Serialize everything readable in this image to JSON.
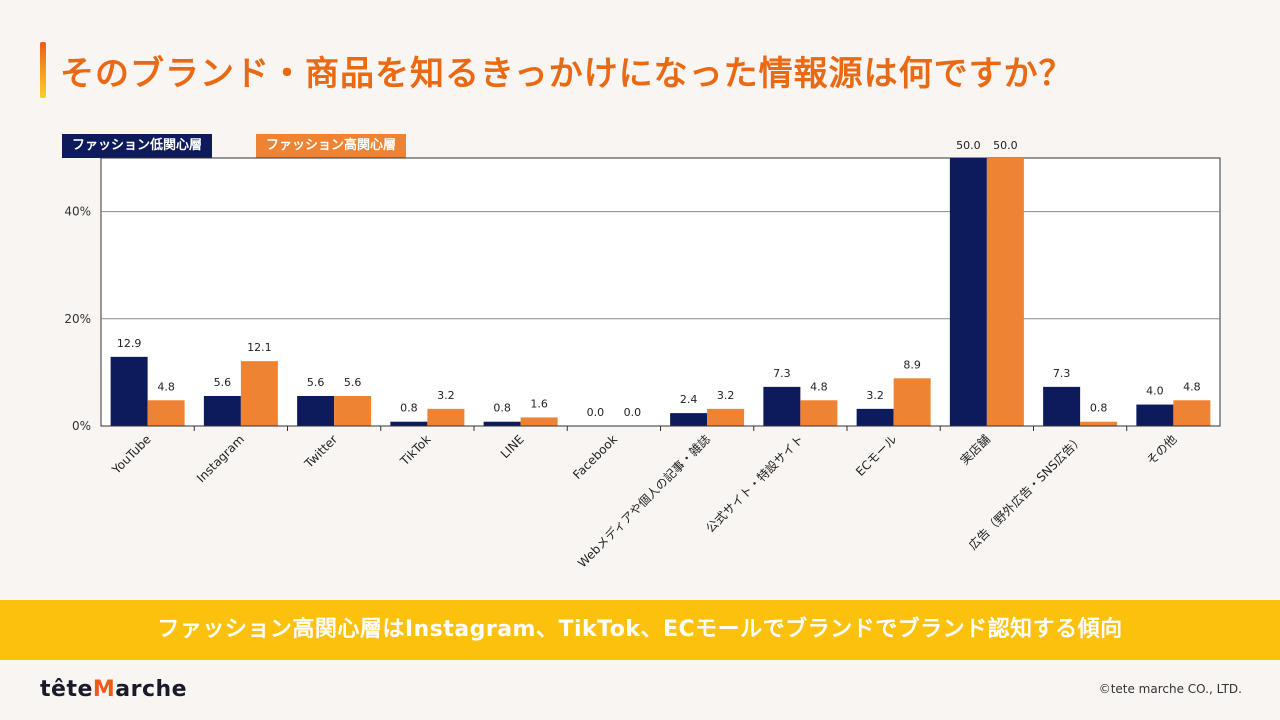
{
  "title": "そのブランド・商品を知るきっかけになった情報源は何ですか？",
  "colors": {
    "accent": "#ea6a14",
    "low": "#0d1a5c",
    "high": "#ee8333",
    "banner": "#fcc10d"
  },
  "chart_data": {
    "type": "bar",
    "categories": [
      "YouTube",
      "Instagram",
      "Twitter",
      "TikTok",
      "LINE",
      "Facebook",
      "Webメディアや個人の記事・雑誌",
      "公式サイト・特設サイト",
      "ECモール",
      "実店舗",
      "広告（野外広告・SNS広告）",
      "その他"
    ],
    "series": [
      {
        "name": "ファッション低関心層",
        "values": [
          12.9,
          5.6,
          5.6,
          0.8,
          0.8,
          0.0,
          2.4,
          7.3,
          3.2,
          50.0,
          7.3,
          4.0
        ],
        "labels": [
          "12.9",
          "5.6",
          "5.6",
          "0.8",
          "0.8",
          "0.0",
          "2.4",
          "7.3",
          "3.2",
          "50.0",
          "7.3",
          "4.0"
        ]
      },
      {
        "name": "ファッション高関心層",
        "values": [
          4.8,
          12.1,
          5.6,
          3.2,
          1.6,
          0.0,
          3.2,
          4.8,
          8.9,
          50.0,
          0.8,
          4.8
        ],
        "labels": [
          "4.8",
          "12.1",
          "5.6",
          "3.2",
          "1.6",
          "0.0",
          "3.2",
          "4.8",
          "8.9",
          "50.0",
          "0.8",
          "4.8"
        ]
      }
    ],
    "yticks": [
      "0%",
      "20%",
      "40%"
    ],
    "ytick_values": [
      0,
      20,
      40
    ],
    "ylim": [
      0,
      50
    ],
    "grid": true,
    "legend": "top-left"
  },
  "banner": "ファッション高関心層はInstagram、TikTok、ECモールでブランドでブランド認知する傾向",
  "logo": {
    "prefix": "tête",
    "mark": "M",
    "suffix": "arche"
  },
  "copyright": "©tete marche CO., LTD."
}
